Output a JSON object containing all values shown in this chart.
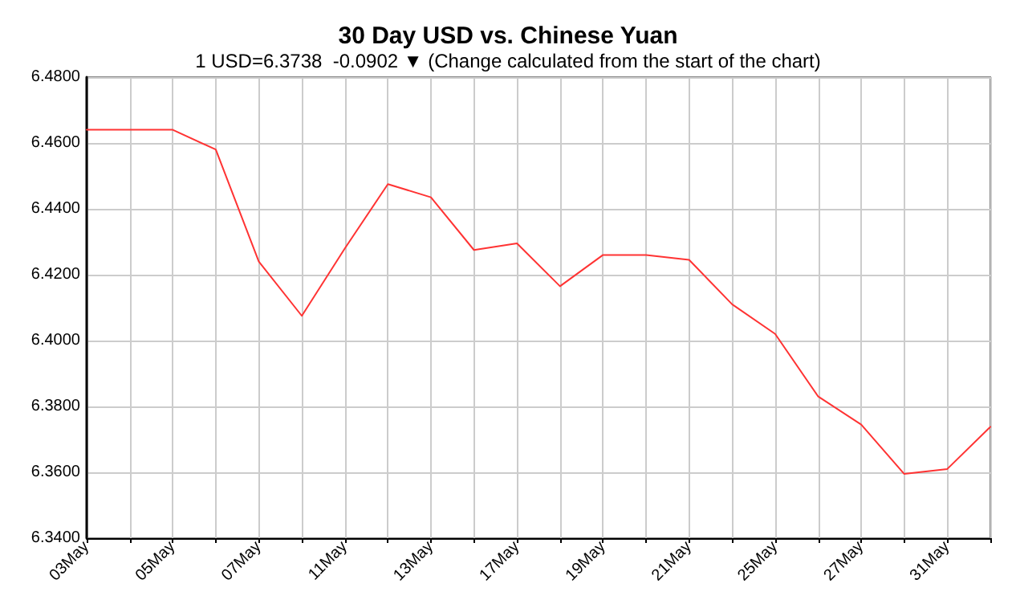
{
  "chart_data": {
    "type": "line",
    "title": "30 Day USD vs. Chinese Yuan",
    "subtitle": "1 USD=6.3738  -0.0902 ▼ (Change calculated from the start of the chart)",
    "categories": [
      "03May",
      null,
      "05May",
      null,
      "07May",
      null,
      "11May",
      null,
      "13May",
      null,
      "17May",
      null,
      "19May",
      null,
      "21May",
      null,
      "25May",
      null,
      "27May",
      null,
      "31May",
      null
    ],
    "series": [
      {
        "color": "#ff3333",
        "values": [
          6.464,
          6.464,
          6.464,
          6.458,
          6.424,
          6.4075,
          6.428,
          6.4475,
          6.4435,
          6.4275,
          6.4295,
          6.4165,
          6.426,
          6.426,
          6.4245,
          6.411,
          6.402,
          6.383,
          6.3745,
          6.3595,
          6.361,
          6.3738
        ]
      }
    ],
    "ylim": [
      6.34,
      6.48
    ],
    "yticks": [
      {
        "value": 6.34,
        "label": "6.3400"
      },
      {
        "value": 6.36,
        "label": "6.3600"
      },
      {
        "value": 6.38,
        "label": "6.3800"
      },
      {
        "value": 6.4,
        "label": "6.4000"
      },
      {
        "value": 6.42,
        "label": "6.4200"
      },
      {
        "value": 6.44,
        "label": "6.4400"
      },
      {
        "value": 6.46,
        "label": "6.4600"
      },
      {
        "value": 6.48,
        "label": "6.4800"
      }
    ],
    "grid": true,
    "marker": "none",
    "line_style": "solid"
  }
}
